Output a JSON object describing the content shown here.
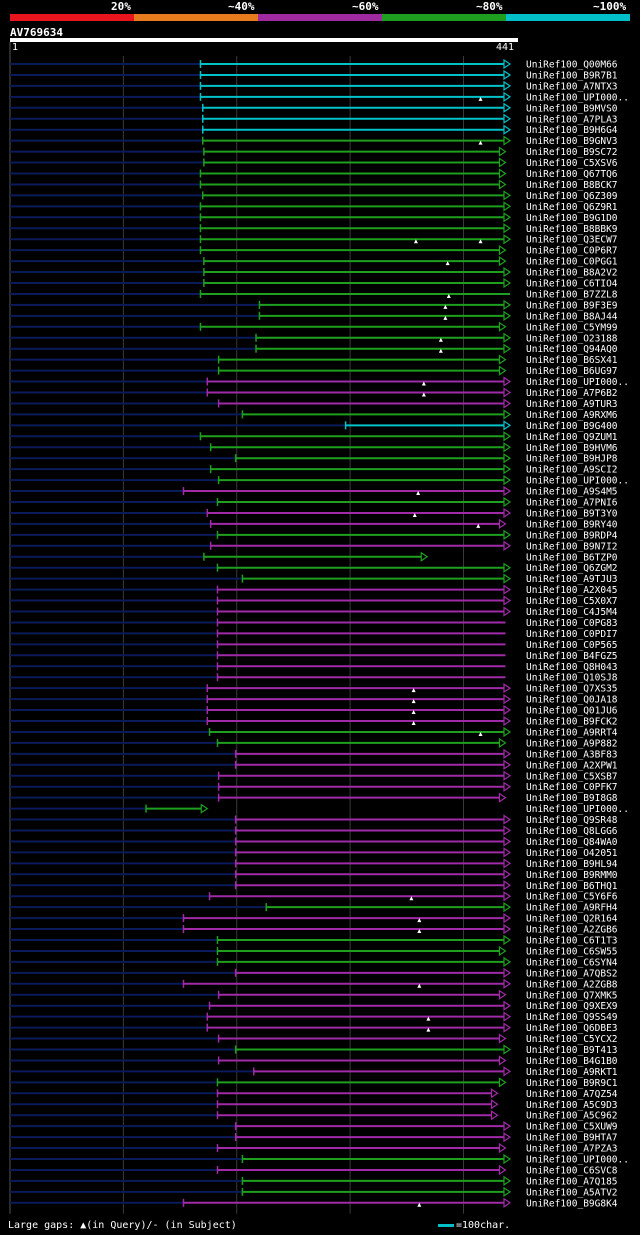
{
  "legend": {
    "segments": [
      {
        "label": "20%",
        "color": "#e8141e"
      },
      {
        "label": "~40%",
        "color": "#e87a1e"
      },
      {
        "label": "~60%",
        "color": "#9f2aa0"
      },
      {
        "label": "~80%",
        "color": "#1e9e1e"
      },
      {
        "label": "~100%",
        "color": "#00bfc8"
      }
    ]
  },
  "query": {
    "id": "AV769634",
    "start_label": "1",
    "end_label": "441"
  },
  "footer": {
    "gaps_text": "Large gaps: ▲(in Query)/- (in Subject)",
    "scale_text": "=100char."
  },
  "chart_data": {
    "type": "alignment",
    "title": "AV769634",
    "query_length": 441,
    "grid_positions": [
      100,
      200,
      300,
      400
    ],
    "hits": [
      {
        "name": "UniRef100_Q00M66",
        "start": 168,
        "end": 441,
        "color": "cyan",
        "arrow": true
      },
      {
        "name": "UniRef100_B9R7B1",
        "start": 168,
        "end": 441,
        "color": "cyan",
        "arrow": true
      },
      {
        "name": "UniRef100_A7NTX3",
        "start": 168,
        "end": 441,
        "color": "cyan",
        "arrow": true
      },
      {
        "name": "UniRef100_UPI000..",
        "start": 168,
        "end": 441,
        "color": "cyan",
        "arrow": true,
        "gaps": [
          415
        ]
      },
      {
        "name": "UniRef100_B9MVS0",
        "start": 170,
        "end": 441,
        "color": "cyan",
        "arrow": true
      },
      {
        "name": "UniRef100_A7PLA3",
        "start": 170,
        "end": 441,
        "color": "cyan",
        "arrow": true
      },
      {
        "name": "UniRef100_B9H6G4",
        "start": 170,
        "end": 441,
        "color": "cyan",
        "arrow": true
      },
      {
        "name": "UniRef100_B9GNV3",
        "start": 170,
        "end": 441,
        "color": "green",
        "arrow": true,
        "gaps": [
          415
        ]
      },
      {
        "name": "UniRef100_B9SC72",
        "start": 171,
        "end": 437,
        "color": "green",
        "arrow": true
      },
      {
        "name": "UniRef100_C5XSV6",
        "start": 171,
        "end": 437,
        "color": "green",
        "arrow": true
      },
      {
        "name": "UniRef100_Q67TQ6",
        "start": 168,
        "end": 437,
        "color": "green",
        "arrow": true
      },
      {
        "name": "UniRef100_B8BCK7",
        "start": 168,
        "end": 437,
        "color": "green",
        "arrow": true
      },
      {
        "name": "UniRef100_Q6Z309",
        "start": 170,
        "end": 441,
        "color": "green",
        "arrow": true
      },
      {
        "name": "UniRef100_Q6Z9R1",
        "start": 168,
        "end": 441,
        "color": "green",
        "arrow": true
      },
      {
        "name": "UniRef100_B9G1D0",
        "start": 168,
        "end": 441,
        "color": "green",
        "arrow": true
      },
      {
        "name": "UniRef100_B8BBK9",
        "start": 168,
        "end": 441,
        "color": "green",
        "arrow": true
      },
      {
        "name": "UniRef100_Q3ECW7",
        "start": 168,
        "end": 441,
        "color": "green",
        "arrow": true,
        "gaps": [
          358,
          415
        ]
      },
      {
        "name": "UniRef100_C0P6R7",
        "start": 168,
        "end": 437,
        "color": "green",
        "arrow": true
      },
      {
        "name": "UniRef100_C0PGG1",
        "start": 171,
        "end": 437,
        "color": "green",
        "arrow": true,
        "gaps": [
          386
        ]
      },
      {
        "name": "UniRef100_B8A2V2",
        "start": 171,
        "end": 441,
        "color": "green",
        "arrow": true
      },
      {
        "name": "UniRef100_C6TIO4",
        "start": 171,
        "end": 441,
        "color": "green",
        "arrow": true
      },
      {
        "name": "UniRef100_B7ZZL8",
        "start": 168,
        "end": 441,
        "color": "green",
        "arrow": false,
        "gaps": [
          387
        ]
      },
      {
        "name": "UniRef100_B9F3E9",
        "start": 220,
        "end": 441,
        "color": "green",
        "arrow": true,
        "gaps": [
          384
        ]
      },
      {
        "name": "UniRef100_B8AJ44",
        "start": 220,
        "end": 441,
        "color": "green",
        "arrow": true,
        "gaps": [
          384
        ]
      },
      {
        "name": "UniRef100_C5YM99",
        "start": 168,
        "end": 437,
        "color": "green",
        "arrow": true
      },
      {
        "name": "UniRef100_O23188",
        "start": 217,
        "end": 441,
        "color": "green",
        "arrow": true,
        "gaps": [
          380
        ]
      },
      {
        "name": "UniRef100_Q94AQ0",
        "start": 217,
        "end": 441,
        "color": "green",
        "arrow": true,
        "gaps": [
          380
        ]
      },
      {
        "name": "UniRef100_B6SX41",
        "start": 184,
        "end": 437,
        "color": "green",
        "arrow": true
      },
      {
        "name": "UniRef100_B6UG97",
        "start": 184,
        "end": 437,
        "color": "green",
        "arrow": true
      },
      {
        "name": "UniRef100_UPI000..",
        "start": 174,
        "end": 441,
        "color": "magenta",
        "arrow": true,
        "gaps": [
          365
        ]
      },
      {
        "name": "UniRef100_A7P6B2",
        "start": 174,
        "end": 441,
        "color": "magenta",
        "arrow": true,
        "gaps": [
          365
        ]
      },
      {
        "name": "UniRef100_A9TUR3",
        "start": 184,
        "end": 441,
        "color": "magenta",
        "arrow": true
      },
      {
        "name": "UniRef100_A9RXM6",
        "start": 205,
        "end": 441,
        "color": "green",
        "arrow": true
      },
      {
        "name": "UniRef100_B9G400",
        "start": 296,
        "end": 441,
        "color": "cyan",
        "arrow": true
      },
      {
        "name": "UniRef100_Q9ZUM1",
        "start": 168,
        "end": 441,
        "color": "green",
        "arrow": true
      },
      {
        "name": "UniRef100_B9HVM6",
        "start": 177,
        "end": 441,
        "color": "green",
        "arrow": true
      },
      {
        "name": "UniRef100_B9HJP8",
        "start": 199,
        "end": 441,
        "color": "green",
        "arrow": true
      },
      {
        "name": "UniRef100_A9SCI2",
        "start": 177,
        "end": 441,
        "color": "green",
        "arrow": true
      },
      {
        "name": "UniRef100_UPI000..",
        "start": 184,
        "end": 441,
        "color": "green",
        "arrow": true
      },
      {
        "name": "UniRef100_A9S4M5",
        "start": 153,
        "end": 441,
        "color": "magenta",
        "arrow": true,
        "gaps": [
          360
        ]
      },
      {
        "name": "UniRef100_A7PNI6",
        "start": 183,
        "end": 441,
        "color": "green",
        "arrow": true
      },
      {
        "name": "UniRef100_B9T3Y0",
        "start": 174,
        "end": 441,
        "color": "magenta",
        "arrow": true,
        "gaps": [
          357
        ]
      },
      {
        "name": "UniRef100_B9RY40",
        "start": 177,
        "end": 437,
        "color": "magenta",
        "arrow": true,
        "gaps": [
          413
        ]
      },
      {
        "name": "UniRef100_B9RDP4",
        "start": 183,
        "end": 441,
        "color": "green",
        "arrow": true
      },
      {
        "name": "UniRef100_B9N7I2",
        "start": 177,
        "end": 441,
        "color": "magenta",
        "arrow": true
      },
      {
        "name": "UniRef100_B6TZP0",
        "start": 171,
        "end": 368,
        "color": "green",
        "arrow": true
      },
      {
        "name": "UniRef100_Q6ZGM2",
        "start": 183,
        "end": 441,
        "color": "green",
        "arrow": true
      },
      {
        "name": "UniRef100_A9TJU3",
        "start": 205,
        "end": 441,
        "color": "green",
        "arrow": true
      },
      {
        "name": "UniRef100_A2X045",
        "start": 183,
        "end": 441,
        "color": "magenta",
        "arrow": true
      },
      {
        "name": "UniRef100_C5X0X7",
        "start": 183,
        "end": 441,
        "color": "magenta",
        "arrow": true
      },
      {
        "name": "UniRef100_C4J5M4",
        "start": 183,
        "end": 441,
        "color": "magenta",
        "arrow": true
      },
      {
        "name": "UniRef100_C0PG83",
        "start": 183,
        "end": 437,
        "color": "magenta",
        "arrow": false
      },
      {
        "name": "UniRef100_C0PDI7",
        "start": 183,
        "end": 437,
        "color": "magenta",
        "arrow": false
      },
      {
        "name": "UniRef100_C0P565",
        "start": 183,
        "end": 437,
        "color": "magenta",
        "arrow": false
      },
      {
        "name": "UniRef100_B4FGZ5",
        "start": 183,
        "end": 437,
        "color": "magenta",
        "arrow": false
      },
      {
        "name": "UniRef100_Q8H043",
        "start": 183,
        "end": 437,
        "color": "magenta",
        "arrow": false
      },
      {
        "name": "UniRef100_Q10SJ8",
        "start": 183,
        "end": 437,
        "color": "magenta",
        "arrow": false
      },
      {
        "name": "UniRef100_Q7XS35",
        "start": 174,
        "end": 441,
        "color": "magenta",
        "arrow": true,
        "gaps": [
          356
        ]
      },
      {
        "name": "UniRef100_Q0JA18",
        "start": 174,
        "end": 441,
        "color": "magenta",
        "arrow": true,
        "gaps": [
          356
        ]
      },
      {
        "name": "UniRef100_Q01JU6",
        "start": 174,
        "end": 441,
        "color": "magenta",
        "arrow": true,
        "gaps": [
          356
        ]
      },
      {
        "name": "UniRef100_B9FCK2",
        "start": 174,
        "end": 441,
        "color": "magenta",
        "arrow": true,
        "gaps": [
          356
        ]
      },
      {
        "name": "UniRef100_A9RRT4",
        "start": 176,
        "end": 441,
        "color": "green",
        "arrow": true,
        "gaps": [
          415
        ]
      },
      {
        "name": "UniRef100_A9P882",
        "start": 183,
        "end": 437,
        "color": "green",
        "arrow": true
      },
      {
        "name": "UniRef100_A3BF83",
        "start": 199,
        "end": 441,
        "color": "magenta",
        "arrow": true
      },
      {
        "name": "UniRef100_A2XPW1",
        "start": 199,
        "end": 441,
        "color": "magenta",
        "arrow": true
      },
      {
        "name": "UniRef100_C5XSB7",
        "start": 184,
        "end": 441,
        "color": "magenta",
        "arrow": true
      },
      {
        "name": "UniRef100_C0PFK7",
        "start": 184,
        "end": 441,
        "color": "magenta",
        "arrow": true
      },
      {
        "name": "UniRef100_B9I8G8",
        "start": 184,
        "end": 437,
        "color": "magenta",
        "arrow": true
      },
      {
        "name": "UniRef100_UPI000..",
        "start": 120,
        "end": 174,
        "color": "green",
        "arrow": true
      },
      {
        "name": "UniRef100_Q9SR48",
        "start": 199,
        "end": 441,
        "color": "magenta",
        "arrow": true
      },
      {
        "name": "UniRef100_Q8LGG6",
        "start": 199,
        "end": 441,
        "color": "magenta",
        "arrow": true
      },
      {
        "name": "UniRef100_Q84WA0",
        "start": 199,
        "end": 441,
        "color": "magenta",
        "arrow": true
      },
      {
        "name": "UniRef100_O42051",
        "start": 199,
        "end": 441,
        "color": "magenta",
        "arrow": true
      },
      {
        "name": "UniRef100_B9HL94",
        "start": 199,
        "end": 441,
        "color": "magenta",
        "arrow": true
      },
      {
        "name": "UniRef100_B9RMM0",
        "start": 199,
        "end": 441,
        "color": "magenta",
        "arrow": true
      },
      {
        "name": "UniRef100_B6THQ1",
        "start": 199,
        "end": 441,
        "color": "magenta",
        "arrow": true
      },
      {
        "name": "UniRef100_C5Y6F6",
        "start": 176,
        "end": 441,
        "color": "magenta",
        "arrow": true,
        "gaps": [
          354
        ]
      },
      {
        "name": "UniRef100_A9RFH4",
        "start": 226,
        "end": 441,
        "color": "green",
        "arrow": true
      },
      {
        "name": "UniRef100_Q2R164",
        "start": 153,
        "end": 441,
        "color": "magenta",
        "arrow": true,
        "gaps": [
          361
        ]
      },
      {
        "name": "UniRef100_A2ZGB6",
        "start": 153,
        "end": 441,
        "color": "magenta",
        "arrow": true,
        "gaps": [
          361
        ]
      },
      {
        "name": "UniRef100_C6T1T3",
        "start": 183,
        "end": 441,
        "color": "green",
        "arrow": true
      },
      {
        "name": "UniRef100_C6SW55",
        "start": 183,
        "end": 437,
        "color": "green",
        "arrow": true
      },
      {
        "name": "UniRef100_C6SYN4",
        "start": 183,
        "end": 441,
        "color": "green",
        "arrow": true
      },
      {
        "name": "UniRef100_A7QBS2",
        "start": 199,
        "end": 441,
        "color": "magenta",
        "arrow": true
      },
      {
        "name": "UniRef100_A2ZGB8",
        "start": 153,
        "end": 441,
        "color": "magenta",
        "arrow": true,
        "gaps": [
          361
        ]
      },
      {
        "name": "UniRef100_Q7XMK5",
        "start": 184,
        "end": 437,
        "color": "magenta",
        "arrow": true
      },
      {
        "name": "UniRef100_Q9XEX9",
        "start": 176,
        "end": 441,
        "color": "magenta",
        "arrow": true
      },
      {
        "name": "UniRef100_Q9SS49",
        "start": 174,
        "end": 441,
        "color": "magenta",
        "arrow": true,
        "gaps": [
          369
        ]
      },
      {
        "name": "UniRef100_Q6DBE3",
        "start": 174,
        "end": 441,
        "color": "magenta",
        "arrow": true,
        "gaps": [
          369
        ]
      },
      {
        "name": "UniRef100_C5YCX2",
        "start": 184,
        "end": 437,
        "color": "magenta",
        "arrow": true
      },
      {
        "name": "UniRef100_B9T413",
        "start": 199,
        "end": 441,
        "color": "green",
        "arrow": true
      },
      {
        "name": "UniRef100_B4G1B0",
        "start": 184,
        "end": 437,
        "color": "magenta",
        "arrow": true
      },
      {
        "name": "UniRef100_A9RKT1",
        "start": 215,
        "end": 441,
        "color": "magenta",
        "arrow": true
      },
      {
        "name": "UniRef100_B9R9C1",
        "start": 183,
        "end": 437,
        "color": "green",
        "arrow": true
      },
      {
        "name": "UniRef100_A7QZ54",
        "start": 183,
        "end": 430,
        "color": "magenta",
        "arrow": true
      },
      {
        "name": "UniRef100_A5C9D3",
        "start": 183,
        "end": 430,
        "color": "magenta",
        "arrow": true
      },
      {
        "name": "UniRef100_A5C962",
        "start": 183,
        "end": 430,
        "color": "magenta",
        "arrow": true
      },
      {
        "name": "UniRef100_C5XUW9",
        "start": 199,
        "end": 441,
        "color": "magenta",
        "arrow": true
      },
      {
        "name": "UniRef100_B9HTA7",
        "start": 199,
        "end": 441,
        "color": "magenta",
        "arrow": true
      },
      {
        "name": "UniRef100_A7PZA3",
        "start": 183,
        "end": 437,
        "color": "magenta",
        "arrow": true
      },
      {
        "name": "UniRef100_UPI000..",
        "start": 205,
        "end": 441,
        "color": "green",
        "arrow": true
      },
      {
        "name": "UniRef100_C6SVC8",
        "start": 183,
        "end": 437,
        "color": "magenta",
        "arrow": true
      },
      {
        "name": "UniRef100_A7Q185",
        "start": 205,
        "end": 441,
        "color": "green",
        "arrow": true
      },
      {
        "name": "UniRef100_A5ATV2",
        "start": 205,
        "end": 441,
        "color": "green",
        "arrow": true
      },
      {
        "name": "UniRef100_B9G8K4",
        "start": 153,
        "end": 441,
        "color": "magenta",
        "arrow": true,
        "gaps": [
          361
        ]
      }
    ]
  }
}
